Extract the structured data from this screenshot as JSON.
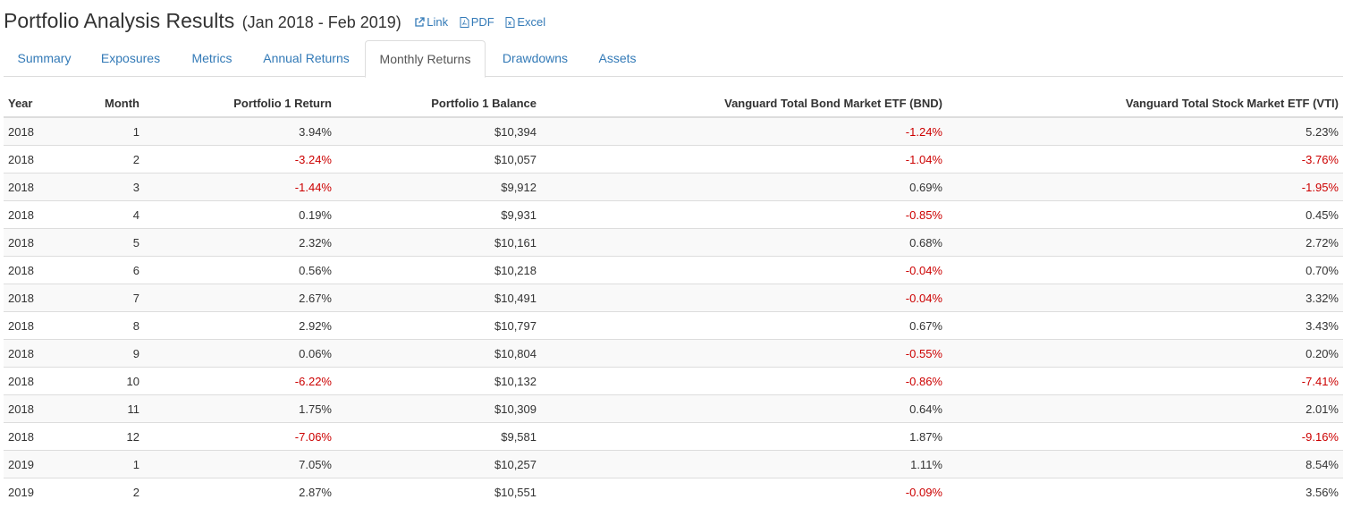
{
  "header": {
    "title": "Portfolio Analysis Results",
    "date_range": "(Jan 2018 - Feb 2019)",
    "links": {
      "link": "Link",
      "pdf": "PDF",
      "excel": "Excel"
    }
  },
  "tabs": [
    {
      "label": "Summary"
    },
    {
      "label": "Exposures"
    },
    {
      "label": "Metrics"
    },
    {
      "label": "Annual Returns"
    },
    {
      "label": "Monthly Returns"
    },
    {
      "label": "Drawdowns"
    },
    {
      "label": "Assets"
    }
  ],
  "active_tab": "Monthly Returns",
  "colors": {
    "link": "#337ab7",
    "negative": "#cc0000"
  },
  "table": {
    "columns": [
      "Year",
      "Month",
      "Portfolio 1 Return",
      "Portfolio 1 Balance",
      "Vanguard Total Bond Market ETF (BND)",
      "Vanguard Total Stock Market ETF (VTI)"
    ],
    "rows": [
      [
        "2018",
        "1",
        "3.94%",
        "$10,394",
        "-1.24%",
        "5.23%"
      ],
      [
        "2018",
        "2",
        "-3.24%",
        "$10,057",
        "-1.04%",
        "-3.76%"
      ],
      [
        "2018",
        "3",
        "-1.44%",
        "$9,912",
        "0.69%",
        "-1.95%"
      ],
      [
        "2018",
        "4",
        "0.19%",
        "$9,931",
        "-0.85%",
        "0.45%"
      ],
      [
        "2018",
        "5",
        "2.32%",
        "$10,161",
        "0.68%",
        "2.72%"
      ],
      [
        "2018",
        "6",
        "0.56%",
        "$10,218",
        "-0.04%",
        "0.70%"
      ],
      [
        "2018",
        "7",
        "2.67%",
        "$10,491",
        "-0.04%",
        "3.32%"
      ],
      [
        "2018",
        "8",
        "2.92%",
        "$10,797",
        "0.67%",
        "3.43%"
      ],
      [
        "2018",
        "9",
        "0.06%",
        "$10,804",
        "-0.55%",
        "0.20%"
      ],
      [
        "2018",
        "10",
        "-6.22%",
        "$10,132",
        "-0.86%",
        "-7.41%"
      ],
      [
        "2018",
        "11",
        "1.75%",
        "$10,309",
        "0.64%",
        "2.01%"
      ],
      [
        "2018",
        "12",
        "-7.06%",
        "$9,581",
        "1.87%",
        "-9.16%"
      ],
      [
        "2019",
        "1",
        "7.05%",
        "$10,257",
        "1.11%",
        "8.54%"
      ],
      [
        "2019",
        "2",
        "2.87%",
        "$10,551",
        "-0.09%",
        "3.56%"
      ]
    ]
  }
}
